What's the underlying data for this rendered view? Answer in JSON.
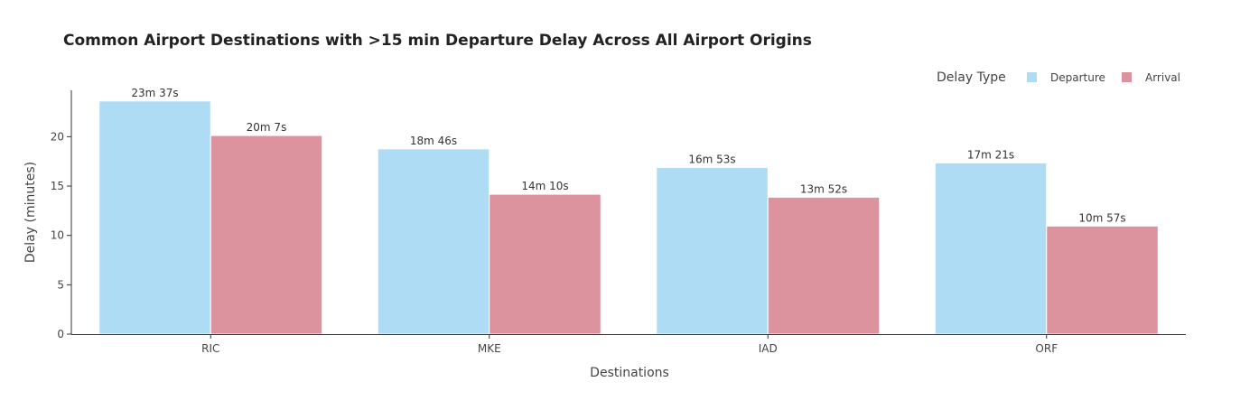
{
  "chart_data": {
    "type": "bar",
    "title": "Common Airport Destinations with >15 min Departure Delay Across All Airport Origins",
    "xlabel": "Destinations",
    "ylabel": "Delay (minutes)",
    "ylim": [
      0,
      24.7
    ],
    "yticks": [
      0,
      5,
      10,
      15,
      20
    ],
    "grid": false,
    "legend_position": "top-right",
    "legend_title": "Delay Type",
    "categories": [
      "RIC",
      "MKE",
      "IAD",
      "ORF"
    ],
    "series": [
      {
        "name": "Departure",
        "color": "#ADDCF4",
        "values": [
          23.62,
          18.77,
          16.88,
          17.35
        ],
        "labels": [
          "23m 37s",
          "18m 46s",
          "16m 53s",
          "17m 21s"
        ]
      },
      {
        "name": "Arrival",
        "color": "#DC939E",
        "values": [
          20.12,
          14.17,
          13.87,
          10.95
        ],
        "labels": [
          "20m 7s",
          "14m 10s",
          "13m 52s",
          "10m 57s"
        ]
      }
    ]
  }
}
